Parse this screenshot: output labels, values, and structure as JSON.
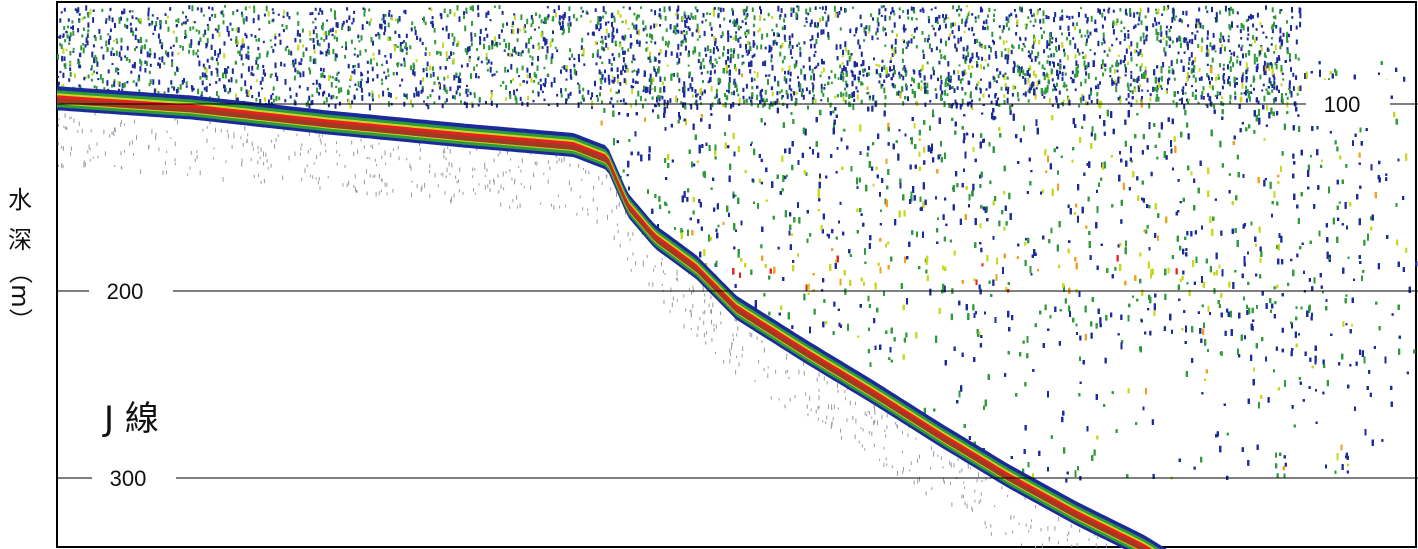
{
  "chart_data": {
    "type": "echogram",
    "title": "J 線",
    "ylabel_chars": [
      "水",
      "深",
      "（",
      "m",
      "）"
    ],
    "y_direction": "depth increasing downward",
    "y_unit": "m",
    "depth_lines": [
      {
        "depth": 100,
        "label": "100"
      },
      {
        "depth": 200,
        "label": "200"
      },
      {
        "depth": 300,
        "label": "300"
      }
    ],
    "seabed_profile": {
      "note": "along-track position as fraction of transect (0 = left edge, 1 = right edge) vs seabed depth in m",
      "points": [
        [
          0,
          98
        ],
        [
          0.1,
          103
        ],
        [
          0.2,
          111
        ],
        [
          0.3,
          118
        ],
        [
          0.38,
          123
        ],
        [
          0.405,
          130
        ],
        [
          0.42,
          155
        ],
        [
          0.44,
          172
        ],
        [
          0.47,
          188
        ],
        [
          0.5,
          210
        ],
        [
          0.55,
          233
        ],
        [
          0.6,
          255
        ],
        [
          0.65,
          278
        ],
        [
          0.7,
          300
        ],
        [
          0.75,
          320
        ],
        [
          0.8,
          338
        ],
        [
          0.82,
          347
        ]
      ]
    },
    "color_scale": [
      "#1a2a9a",
      "#2f9a3a",
      "#c8d820",
      "#f0a020",
      "#e82020",
      "#a03a20"
    ]
  }
}
